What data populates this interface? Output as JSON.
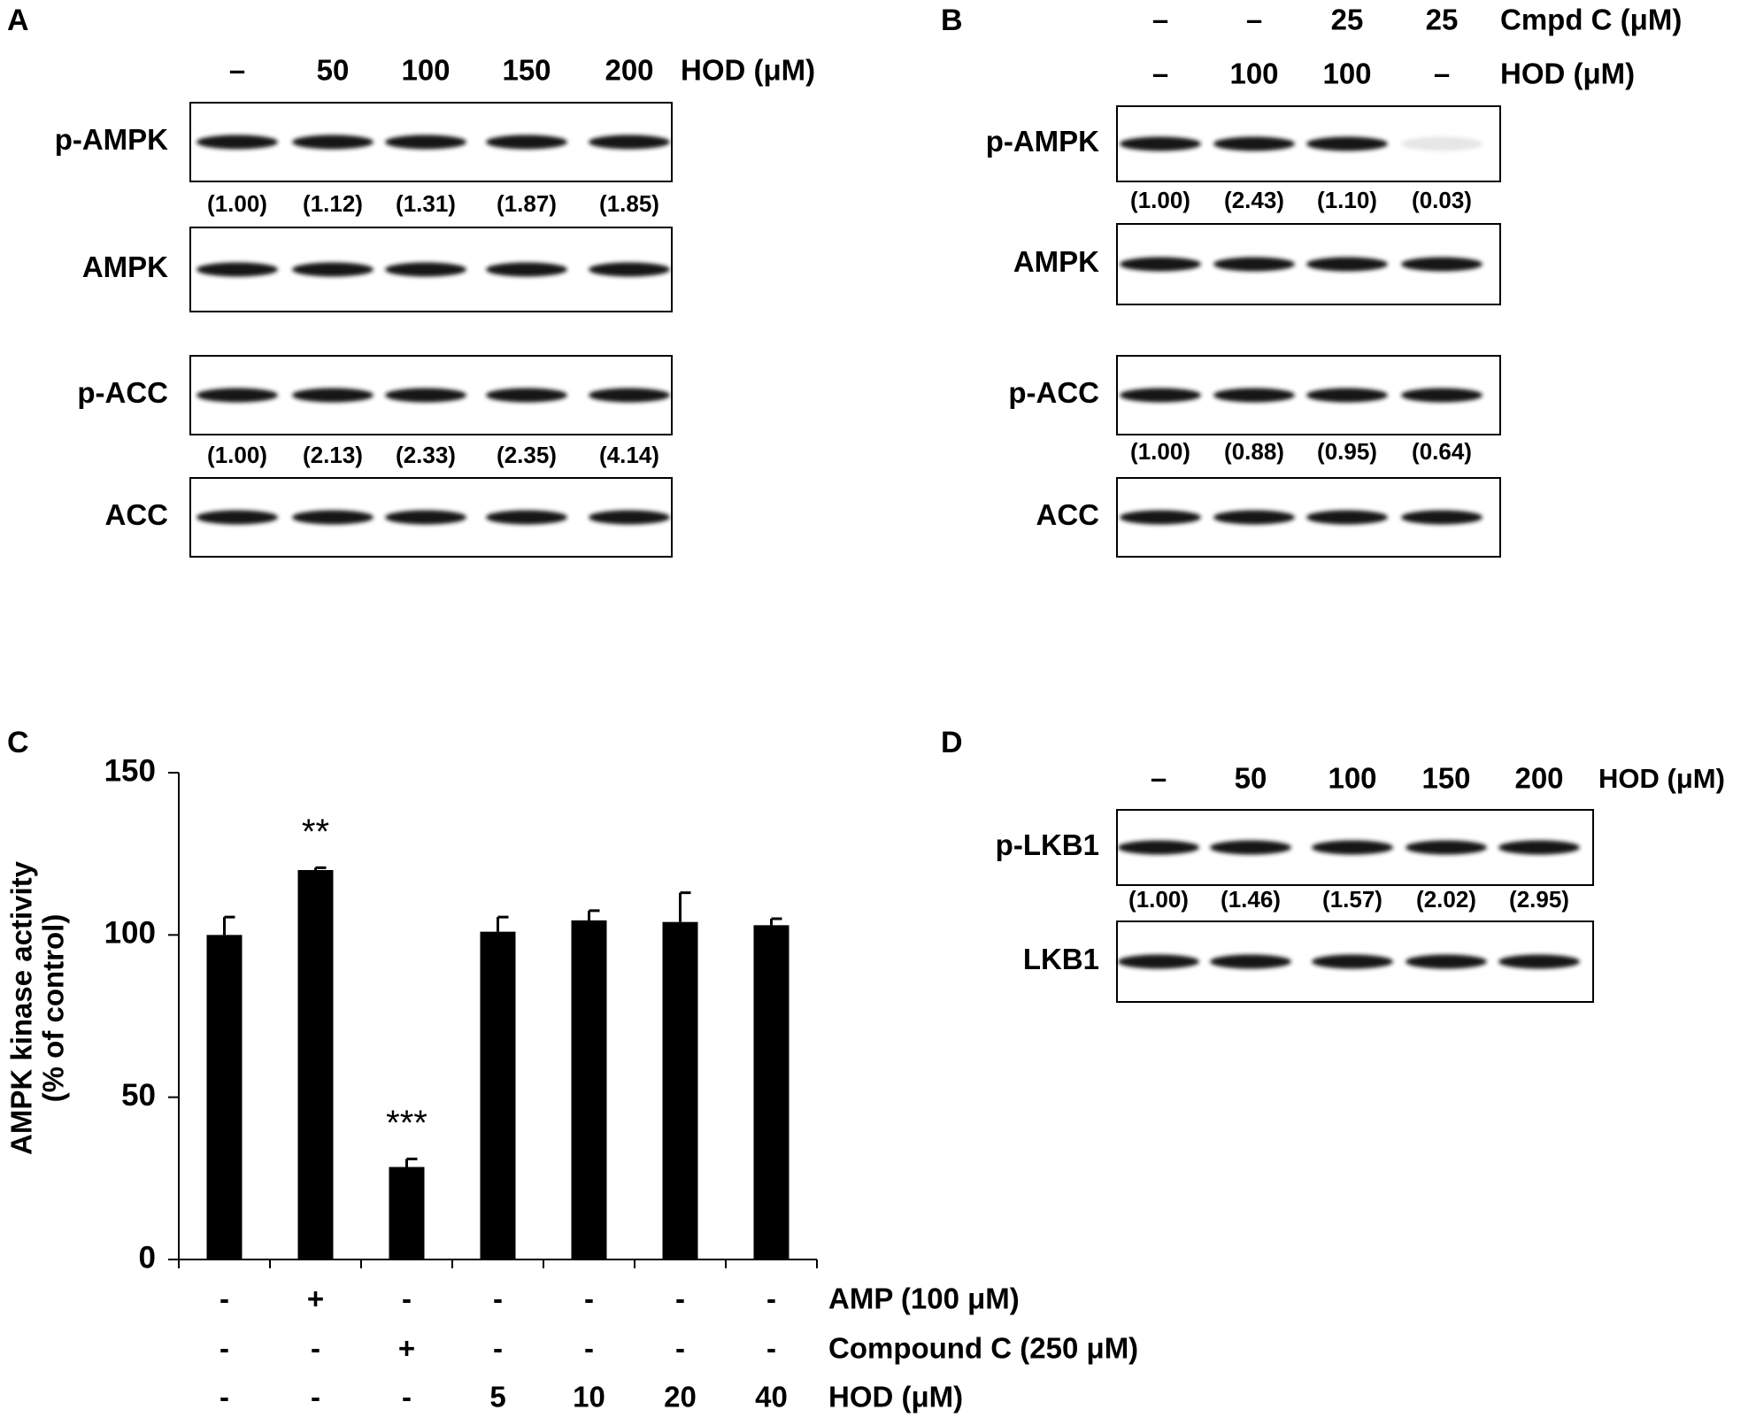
{
  "panels": {
    "A": {
      "label": "A",
      "headers": [
        {
          "label": "HOD (μM)",
          "values": [
            "–",
            "50",
            "100",
            "150",
            "200"
          ]
        }
      ],
      "blots": [
        {
          "name": "p-AMPK",
          "quant": [
            "(1.00)",
            "(1.12)",
            "(1.31)",
            "(1.87)",
            "(1.85)"
          ]
        },
        {
          "name": "AMPK"
        },
        {
          "name": "p-ACC",
          "quant": [
            "(1.00)",
            "(2.13)",
            "(2.33)",
            "(2.35)",
            "(4.14)"
          ]
        },
        {
          "name": "ACC"
        }
      ]
    },
    "B": {
      "label": "B",
      "headers": [
        {
          "label": "Cmpd C (μM)",
          "values": [
            "–",
            "–",
            "25",
            "25"
          ]
        },
        {
          "label": "HOD (μM)",
          "values": [
            "–",
            "100",
            "100",
            "–"
          ]
        }
      ],
      "blots": [
        {
          "name": "p-AMPK",
          "quant": [
            "(1.00)",
            "(2.43)",
            "(1.10)",
            "(0.03)"
          ]
        },
        {
          "name": "AMPK"
        },
        {
          "name": "p-ACC",
          "quant": [
            "(1.00)",
            "(0.88)",
            "(0.95)",
            "(0.64)"
          ]
        },
        {
          "name": "ACC"
        }
      ]
    },
    "D": {
      "label": "D",
      "headers": [
        {
          "label": "HOD (μM)",
          "values": [
            "–",
            "50",
            "100",
            "150",
            "200"
          ]
        }
      ],
      "blots": [
        {
          "name": "p-LKB1",
          "quant": [
            "(1.00)",
            "(1.46)",
            "(1.57)",
            "(2.02)",
            "(2.95)"
          ]
        },
        {
          "name": "LKB1"
        }
      ]
    }
  },
  "chart_data": {
    "type": "bar",
    "panel_label": "C",
    "ylabel": [
      "AMPK kinase activity",
      "(% of control)"
    ],
    "values": [
      100,
      120,
      28.5,
      101,
      104.5,
      104,
      103
    ],
    "errors": [
      5.5,
      0.7,
      2.5,
      4.5,
      3,
      9,
      2
    ],
    "significance": [
      null,
      "**",
      "***",
      null,
      null,
      null,
      null
    ],
    "color": "#000000",
    "ylim": [
      0,
      150
    ],
    "yticks": [
      0,
      50,
      100,
      150
    ],
    "treatments": [
      {
        "label": "AMP (100 μM)",
        "values": [
          "-",
          "+",
          "-",
          "-",
          "-",
          "-",
          "-"
        ]
      },
      {
        "label": "Compound C (250 μM)",
        "values": [
          "-",
          "-",
          "+",
          "-",
          "-",
          "-",
          "-"
        ]
      },
      {
        "label": "HOD (μM)",
        "values": [
          "-",
          "-",
          "-",
          "5",
          "10",
          "20",
          "40"
        ]
      }
    ]
  }
}
